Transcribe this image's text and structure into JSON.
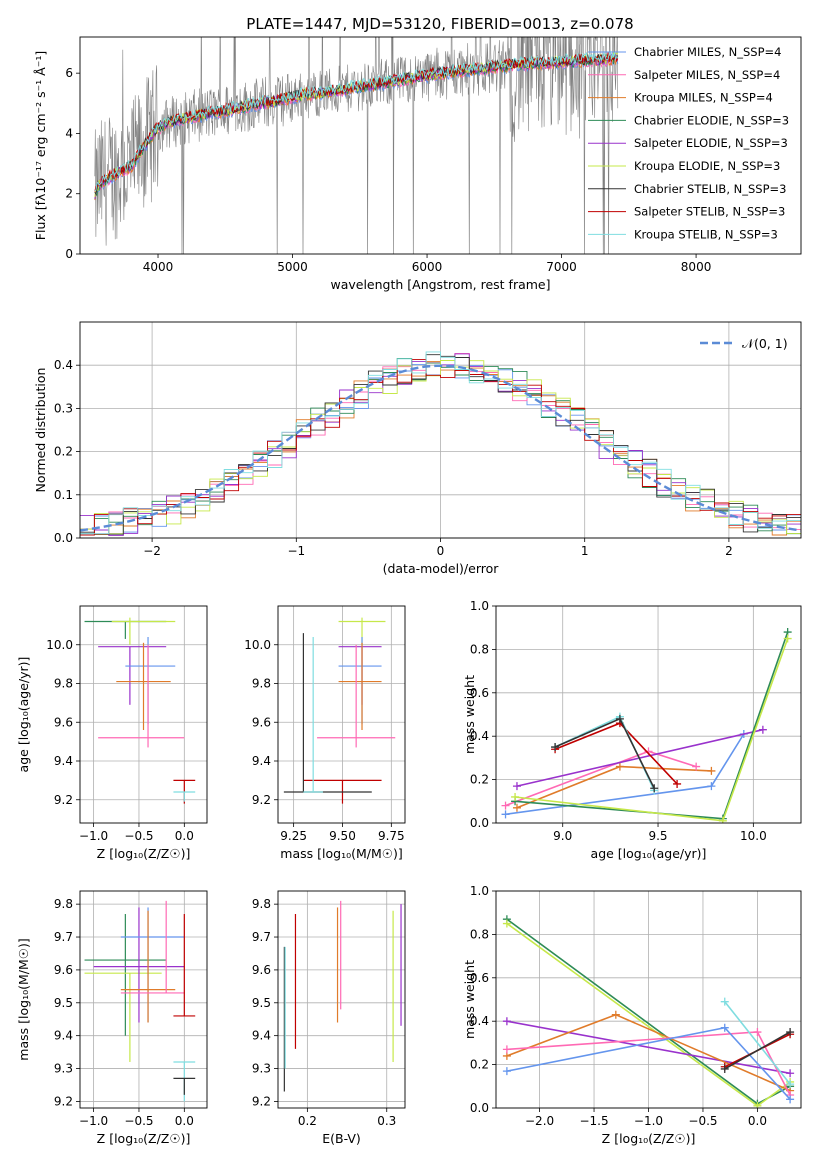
{
  "figure": {
    "title": "PLATE=1447, MJD=53120, FIBERID=0013, z=0.078"
  },
  "chart_data": [
    {
      "id": "spectrum",
      "type": "line",
      "xlabel": "wavelength [Angstrom, rest frame]",
      "ylabel": "Flux [fλ10⁻¹⁷ erg cm⁻² s⁻¹ Å⁻¹]",
      "xlim": [
        3420,
        8780
      ],
      "ylim": [
        0,
        7.2
      ],
      "xticks": [
        4000,
        5000,
        6000,
        7000,
        8000
      ],
      "yticks": [
        0,
        2,
        4,
        6
      ],
      "legend_position": "upper right",
      "legend": [
        {
          "label": "Chabrier MILES, N_SSP=4",
          "color": "#6495ed"
        },
        {
          "label": "Salpeter MILES, N_SSP=4",
          "color": "#ff69b4"
        },
        {
          "label": "Kroupa MILES, N_SSP=4",
          "color": "#e07b2a"
        },
        {
          "label": "Chabrier ELODIE, N_SSP=3",
          "color": "#2e8b57"
        },
        {
          "label": "Salpeter ELODIE, N_SSP=3",
          "color": "#9932cc"
        },
        {
          "label": "Kroupa ELODIE, N_SSP=3",
          "color": "#c6e84a"
        },
        {
          "label": "Chabrier STELIB, N_SSP=3",
          "color": "#333333"
        },
        {
          "label": "Salpeter STELIB, N_SSP=3",
          "color": "#c00000"
        },
        {
          "label": "Kroupa STELIB, N_SSP=3",
          "color": "#7fdde0"
        }
      ],
      "data_color": "#808080",
      "model_continuum": {
        "x": [
          3530,
          3560,
          3700,
          3800,
          3900,
          4000,
          4100,
          4300,
          4500,
          4700,
          4900,
          5100,
          5300,
          5500,
          5700,
          5900,
          6100,
          6300,
          6500,
          6700,
          6900,
          7100,
          7300,
          7420
        ],
        "y": [
          1.9,
          2.3,
          2.7,
          2.9,
          3.6,
          4.2,
          4.4,
          4.6,
          4.75,
          4.95,
          5.1,
          5.3,
          5.4,
          5.55,
          5.7,
          5.85,
          6.0,
          6.1,
          6.2,
          6.3,
          6.35,
          6.4,
          6.45,
          6.5
        ]
      }
    },
    {
      "id": "residuals",
      "type": "histogram",
      "xlabel": "(data-model)/error",
      "ylabel": "Normed distribution",
      "xlim": [
        -2.5,
        2.5
      ],
      "ylim": [
        0,
        0.5
      ],
      "xticks": [
        -2,
        -1,
        0,
        1,
        2
      ],
      "yticks": [
        0.0,
        0.1,
        0.2,
        0.3,
        0.4
      ],
      "legend": [
        {
          "label": "𝒩(0, 1)",
          "color": "#5b8bd6"
        }
      ],
      "reference_curve": "gaussian_mean0_sigma1",
      "bin_width": 0.1
    },
    {
      "id": "age-vs-Z",
      "type": "scatter",
      "xlabel": "Z [log₁₀(Z/Z☉)]",
      "ylabel": "age  [log₁₀(age/yr)]",
      "xlim": [
        -1.15,
        0.25
      ],
      "ylim": [
        9.08,
        10.2
      ],
      "xticks": [
        -1.0,
        -0.5,
        0.0
      ],
      "yticks": [
        9.2,
        9.4,
        9.6,
        9.8,
        10.0
      ],
      "errorbars": [
        {
          "x": -0.65,
          "xerr": [
            0.45,
            0.45
          ],
          "y": 10.12,
          "yerr": [
            0.09,
            0.0
          ],
          "color": "#2e8b57"
        },
        {
          "x": -0.6,
          "xerr": [
            0.2,
            0.5
          ],
          "y": 10.12,
          "yerr": [
            0.12,
            0.02
          ],
          "color": "#c6e84a"
        },
        {
          "x": -0.6,
          "xerr": [
            0.35,
            0.4
          ],
          "y": 9.99,
          "yerr": [
            0.3,
            0.0
          ],
          "color": "#9932cc"
        },
        {
          "x": -0.4,
          "xerr": [
            0.25,
            0.3
          ],
          "y": 9.89,
          "yerr": [
            0.3,
            0.15
          ],
          "color": "#6495ed"
        },
        {
          "x": -0.45,
          "xerr": [
            0.3,
            0.3
          ],
          "y": 9.81,
          "yerr": [
            0.25,
            0.2
          ],
          "color": "#e07b2a"
        },
        {
          "x": -0.4,
          "xerr": [
            0.55,
            0.4
          ],
          "y": 9.52,
          "yerr": [
            0.05,
            0.48
          ],
          "color": "#ff69b4"
        },
        {
          "x": 0.0,
          "xerr": [
            0.12,
            0.12
          ],
          "y": 9.3,
          "yerr": [
            0.12,
            0.0
          ],
          "color": "#c00000"
        },
        {
          "x": 0.0,
          "xerr": [
            0.12,
            0.12
          ],
          "y": 9.24,
          "yerr": [
            0.05,
            0.0
          ],
          "color": "#7fdde0"
        }
      ]
    },
    {
      "id": "age-vs-mass",
      "type": "scatter",
      "xlabel": "mass [log₁₀(M/M☉)]",
      "ylabel": "",
      "xlim": [
        9.17,
        9.82
      ],
      "ylim": [
        9.08,
        10.2
      ],
      "xticks": [
        9.25,
        9.5,
        9.75
      ],
      "yticks": [
        9.2,
        9.4,
        9.6,
        9.8,
        10.0
      ],
      "errorbars": [
        {
          "x": 9.6,
          "xerr": [
            0.12,
            0.12
          ],
          "y": 10.12,
          "yerr": [
            0.12,
            0.02
          ],
          "color": "#c6e84a"
        },
        {
          "x": 9.6,
          "xerr": [
            0.12,
            0.1
          ],
          "y": 9.99,
          "yerr": [
            0.3,
            0.0
          ],
          "color": "#9932cc"
        },
        {
          "x": 9.6,
          "xerr": [
            0.12,
            0.1
          ],
          "y": 9.89,
          "yerr": [
            0.3,
            0.15
          ],
          "color": "#6495ed"
        },
        {
          "x": 9.6,
          "xerr": [
            0.12,
            0.1
          ],
          "y": 9.81,
          "yerr": [
            0.25,
            0.2
          ],
          "color": "#e07b2a"
        },
        {
          "x": 9.57,
          "xerr": [
            0.2,
            0.2
          ],
          "y": 9.52,
          "yerr": [
            0.05,
            0.48
          ],
          "color": "#ff69b4"
        },
        {
          "x": 9.5,
          "xerr": [
            0.2,
            0.2
          ],
          "y": 9.3,
          "yerr": [
            0.12,
            0.0
          ],
          "color": "#c00000"
        },
        {
          "x": 9.3,
          "xerr": [
            0.1,
            0.35
          ],
          "y": 9.24,
          "yerr": [
            0.0,
            0.82
          ],
          "color": "#333333"
        },
        {
          "x": 9.35,
          "xerr": [
            0.05,
            0.05
          ],
          "y": 9.24,
          "yerr": [
            0.0,
            0.8
          ],
          "color": "#7fdde0"
        }
      ]
    },
    {
      "id": "weight-vs-age",
      "type": "line",
      "xlabel": "age  [log₁₀(age/yr)]",
      "ylabel": "mass weight",
      "xlim": [
        8.65,
        10.25
      ],
      "ylim": [
        0,
        1.0
      ],
      "xticks": [
        9.0,
        9.5,
        10.0
      ],
      "yticks": [
        0.0,
        0.2,
        0.4,
        0.6,
        0.8,
        1.0
      ],
      "series": [
        {
          "color": "#6495ed",
          "x": [
            8.7,
            9.78,
            9.95
          ],
          "y": [
            0.04,
            0.17,
            0.41
          ]
        },
        {
          "color": "#e07b2a",
          "x": [
            8.76,
            9.3,
            9.78
          ],
          "y": [
            0.07,
            0.26,
            0.24
          ]
        },
        {
          "color": "#ff69b4",
          "x": [
            8.7,
            9.45,
            9.7
          ],
          "y": [
            0.08,
            0.33,
            0.26
          ]
        },
        {
          "color": "#9932cc",
          "x": [
            8.76,
            10.05
          ],
          "y": [
            0.17,
            0.43
          ]
        },
        {
          "color": "#2e8b57",
          "x": [
            8.75,
            9.84,
            10.18
          ],
          "y": [
            0.1,
            0.02,
            0.88
          ]
        },
        {
          "color": "#c6e84a",
          "x": [
            8.75,
            9.84,
            10.18
          ],
          "y": [
            0.12,
            0.01,
            0.85
          ]
        },
        {
          "color": "#c00000",
          "x": [
            8.96,
            9.3,
            9.6
          ],
          "y": [
            0.34,
            0.46,
            0.18
          ]
        },
        {
          "color": "#7fdde0",
          "x": [
            8.96,
            9.3,
            9.48
          ],
          "y": [
            0.35,
            0.49,
            0.15
          ]
        },
        {
          "color": "#333333",
          "x": [
            8.96,
            9.3,
            9.48
          ],
          "y": [
            0.35,
            0.48,
            0.16
          ]
        }
      ]
    },
    {
      "id": "mass-vs-Z",
      "type": "scatter",
      "xlabel": "Z [log₁₀(Z/Z☉)]",
      "ylabel": "mass [log₁₀(M/M☉)]",
      "xlim": [
        -1.15,
        0.25
      ],
      "ylim": [
        9.18,
        9.84
      ],
      "xticks": [
        -1.0,
        -0.5,
        0.0
      ],
      "yticks": [
        9.2,
        9.3,
        9.4,
        9.5,
        9.6,
        9.7,
        9.8
      ],
      "errorbars": [
        {
          "x": -0.65,
          "xerr": [
            0.45,
            0.45
          ],
          "y": 9.63,
          "yerr": [
            0.23,
            0.14
          ],
          "color": "#2e8b57"
        },
        {
          "x": -0.6,
          "xerr": [
            0.5,
            0.35
          ],
          "y": 9.59,
          "yerr": [
            0.27,
            0.0
          ],
          "color": "#c6e84a"
        },
        {
          "x": -0.5,
          "xerr": [
            0.5,
            0.5
          ],
          "y": 9.61,
          "yerr": [
            0.17,
            0.18
          ],
          "color": "#9932cc"
        },
        {
          "x": -0.4,
          "xerr": [
            0.3,
            0.4
          ],
          "y": 9.7,
          "yerr": [
            0.26,
            0.09
          ],
          "color": "#6495ed"
        },
        {
          "x": -0.4,
          "xerr": [
            0.3,
            0.3
          ],
          "y": 9.54,
          "yerr": [
            0.1,
            0.24
          ],
          "color": "#e07b2a"
        },
        {
          "x": -0.2,
          "xerr": [
            0.5,
            0.2
          ],
          "y": 9.53,
          "yerr": [
            0.0,
            0.28
          ],
          "color": "#ff69b4"
        },
        {
          "x": 0.0,
          "xerr": [
            0.12,
            0.12
          ],
          "y": 9.46,
          "yerr": [
            0.0,
            0.31
          ],
          "color": "#c00000"
        },
        {
          "x": 0.0,
          "xerr": [
            0.12,
            0.12
          ],
          "y": 9.32,
          "yerr": [
            0.12,
            0.0
          ],
          "color": "#7fdde0"
        },
        {
          "x": 0.0,
          "xerr": [
            0.12,
            0.12
          ],
          "y": 9.27,
          "yerr": [
            0.05,
            0.0
          ],
          "color": "#333333"
        }
      ]
    },
    {
      "id": "mass-vs-ebv",
      "type": "scatter",
      "xlabel": "E(B-V)",
      "ylabel": "",
      "xlim": [
        0.163,
        0.323
      ],
      "ylim": [
        9.18,
        9.84
      ],
      "xticks": [
        0.2,
        0.3
      ],
      "yticks": [
        9.2,
        9.3,
        9.4,
        9.5,
        9.6,
        9.7,
        9.8
      ],
      "errorbars": [
        {
          "x": 0.171,
          "xerr": [
            0,
            0
          ],
          "y": 9.23,
          "yerr": [
            0.0,
            0.44
          ],
          "color": "#333333"
        },
        {
          "x": 0.172,
          "xerr": [
            0,
            0
          ],
          "y": 9.3,
          "yerr": [
            0.0,
            0.37
          ],
          "color": "#7fdde0"
        },
        {
          "x": 0.185,
          "xerr": [
            0,
            0
          ],
          "y": 9.36,
          "yerr": [
            0.0,
            0.41
          ],
          "color": "#c00000"
        },
        {
          "x": 0.238,
          "xerr": [
            0,
            0
          ],
          "y": 9.44,
          "yerr": [
            0.0,
            0.35
          ],
          "color": "#e07b2a"
        },
        {
          "x": 0.242,
          "xerr": [
            0,
            0
          ],
          "y": 9.48,
          "yerr": [
            0.0,
            0.33
          ],
          "color": "#ff69b4"
        },
        {
          "x": 0.308,
          "xerr": [
            0,
            0
          ],
          "y": 9.32,
          "yerr": [
            0.0,
            0.46
          ],
          "color": "#c6e84a"
        },
        {
          "x": 0.318,
          "xerr": [
            0,
            0
          ],
          "y": 9.43,
          "yerr": [
            0.0,
            0.37
          ],
          "color": "#9932cc"
        }
      ]
    },
    {
      "id": "weight-vs-Z",
      "type": "line",
      "xlabel": "Z [log₁₀(Z/Z☉)]",
      "ylabel": "mass weight",
      "xlim": [
        -2.4,
        0.4
      ],
      "ylim": [
        0,
        1.0
      ],
      "xticks": [
        -2.0,
        -1.5,
        -1.0,
        -0.5,
        0.0
      ],
      "yticks": [
        0.0,
        0.2,
        0.4,
        0.6,
        0.8,
        1.0
      ],
      "series": [
        {
          "color": "#2e8b57",
          "x": [
            -2.3,
            0.0,
            0.3
          ],
          "y": [
            0.87,
            0.02,
            0.1
          ]
        },
        {
          "color": "#c6e84a",
          "x": [
            -2.3,
            0.0,
            0.3
          ],
          "y": [
            0.85,
            0.01,
            0.12
          ]
        },
        {
          "color": "#9932cc",
          "x": [
            -2.3,
            0.3
          ],
          "y": [
            0.4,
            0.16
          ]
        },
        {
          "color": "#e07b2a",
          "x": [
            -2.3,
            -1.3,
            0.3
          ],
          "y": [
            0.24,
            0.43,
            0.08
          ]
        },
        {
          "color": "#ff69b4",
          "x": [
            -2.3,
            0.0,
            0.3
          ],
          "y": [
            0.27,
            0.35,
            0.06
          ]
        },
        {
          "color": "#6495ed",
          "x": [
            -2.3,
            -0.3,
            0.3
          ],
          "y": [
            0.17,
            0.37,
            0.04
          ]
        },
        {
          "color": "#c00000",
          "x": [
            -0.3,
            0.3
          ],
          "y": [
            0.19,
            0.34
          ]
        },
        {
          "color": "#7fdde0",
          "x": [
            -0.3,
            0.3
          ],
          "y": [
            0.49,
            0.11
          ]
        },
        {
          "color": "#333333",
          "x": [
            -0.3,
            0.3
          ],
          "y": [
            0.18,
            0.35
          ]
        }
      ]
    }
  ]
}
